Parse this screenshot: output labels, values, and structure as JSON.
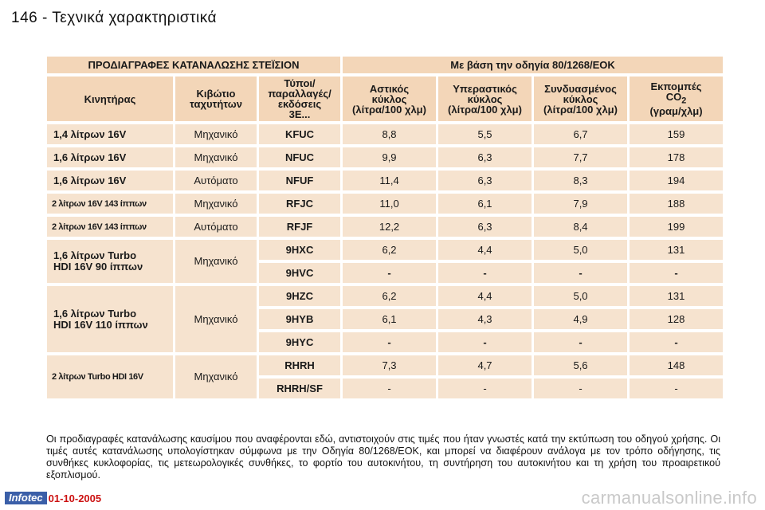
{
  "header": {
    "title": "146 - Τεχνικά χαρακτηριστικά"
  },
  "table": {
    "group_left": "ΠΡΟΔΙΑΓΡΑΦΕΣ ΚΑΤΑΝΑΛΩΣΗΣ ΣΤΕΪΣΙΟΝ",
    "group_right": "Με βάση την οδηγία 80/1268/ΕΟΚ",
    "columns": {
      "engine": "Κινητήρας",
      "gearbox_l1": "Κιβώτιο",
      "gearbox_l2": "ταχυτήτων",
      "types_l1": "Τύποι/",
      "types_l2": "παραλλαγές/",
      "types_l3": "εκδόσεις",
      "types_l4": "3E...",
      "urban_l1": "Αστικός",
      "urban_l2": "κύκλος",
      "urban_l3": "(λίτρα/100 χλμ)",
      "extra_l1": "Υπεραστικός",
      "extra_l2": "κύκλος",
      "extra_l3": "(λίτρα/100 χλμ)",
      "combined_l1": "Συνδυασμένος",
      "combined_l2": "κύκλος",
      "combined_l3": "(λίτρα/100 χλμ)",
      "co2_l1": "Εκπομπές",
      "co2_l2": "CO",
      "co2_sub": "2",
      "co2_l3": "(γραμ/χλμ)"
    },
    "rows": [
      {
        "engine": "1,4 λίτρων 16V",
        "gearbox": "Μηχανικό",
        "code": "KFUC",
        "urban": "8,8",
        "extra": "5,5",
        "combined": "6,7",
        "co2": "159"
      },
      {
        "engine": "1,6 λίτρων 16V",
        "gearbox": "Μηχανικό",
        "code": "NFUC",
        "urban": "9,9",
        "extra": "6,3",
        "combined": "7,7",
        "co2": "178"
      },
      {
        "engine": "1,6 λίτρων 16V",
        "gearbox": "Αυτόματο",
        "code": "NFUF",
        "urban": "11,4",
        "extra": "6,3",
        "combined": "8,3",
        "co2": "194"
      },
      {
        "engine": "2 λίτρων 16V 143 ίππων",
        "gearbox": "Μηχανικό",
        "code": "RFJC",
        "urban": "11,0",
        "extra": "6,1",
        "combined": "7,9",
        "co2": "188"
      },
      {
        "engine": "2 λίτρων 16V 143 ίππων",
        "gearbox": "Αυτόματο",
        "code": "RFJF",
        "urban": "12,2",
        "extra": "6,3",
        "combined": "8,4",
        "co2": "199"
      },
      {
        "engine_l1": "1,6 λίτρων Turbo",
        "engine_l2": "HDI 16V 90 ίππων",
        "gearbox": "Μηχανικό",
        "code": "9HXC",
        "urban": "6,2",
        "extra": "4,4",
        "combined": "5,0",
        "co2": "131"
      },
      {
        "code": "9HVC",
        "urban": "-",
        "extra": "-",
        "combined": "-",
        "co2": "-"
      },
      {
        "engine_l1": "1,6 λίτρων Turbo",
        "engine_l2": "HDI 16V 110 ίππων",
        "gearbox": "Μηχανικό",
        "code": "9HZC",
        "urban": "6,2",
        "extra": "4,4",
        "combined": "5,0",
        "co2": "131"
      },
      {
        "code": "9HYB",
        "urban": "6,1",
        "extra": "4,3",
        "combined": "4,9",
        "co2": "128"
      },
      {
        "code": "9HYC",
        "urban": "-",
        "extra": "-",
        "combined": "-",
        "co2": "-"
      },
      {
        "engine": "2 λίτρων Turbo HDI 16V",
        "gearbox": "Μηχανικό",
        "code": "RHRH",
        "urban": "7,3",
        "extra": "4,7",
        "combined": "5,6",
        "co2": "148"
      },
      {
        "code": "RHRH/SF",
        "urban": "-",
        "extra": "-",
        "combined": "-",
        "co2": "-"
      }
    ]
  },
  "note": "Οι προδιαγραφές κατανάλωσης καυσίμου που αναφέρονται εδώ, αντιστοιχούν στις τιμές που ήταν γνωστές κατά την εκτύπωση του οδηγού χρήσης. Οι τιμές αυτές κατανάλωσης υπολογίστηκαν σύμφωνα με την Οδηγία 80/1268/ΕΟΚ, και μπορεί να διαφέρουν ανάλογα με τον τρόπο οδήγησης, τις συνθήκες κυκλοφορίας, τις μετεωρολογικές συνθήκες, το φορτίο του αυτοκινήτου, τη συντήρηση του αυτοκινήτου και τη χρήση του προαιρετικού εξοπλισμού.",
  "footer": {
    "logo": "Infotec",
    "date": "01-10-2005"
  },
  "watermark": "carmanualsonline.info"
}
